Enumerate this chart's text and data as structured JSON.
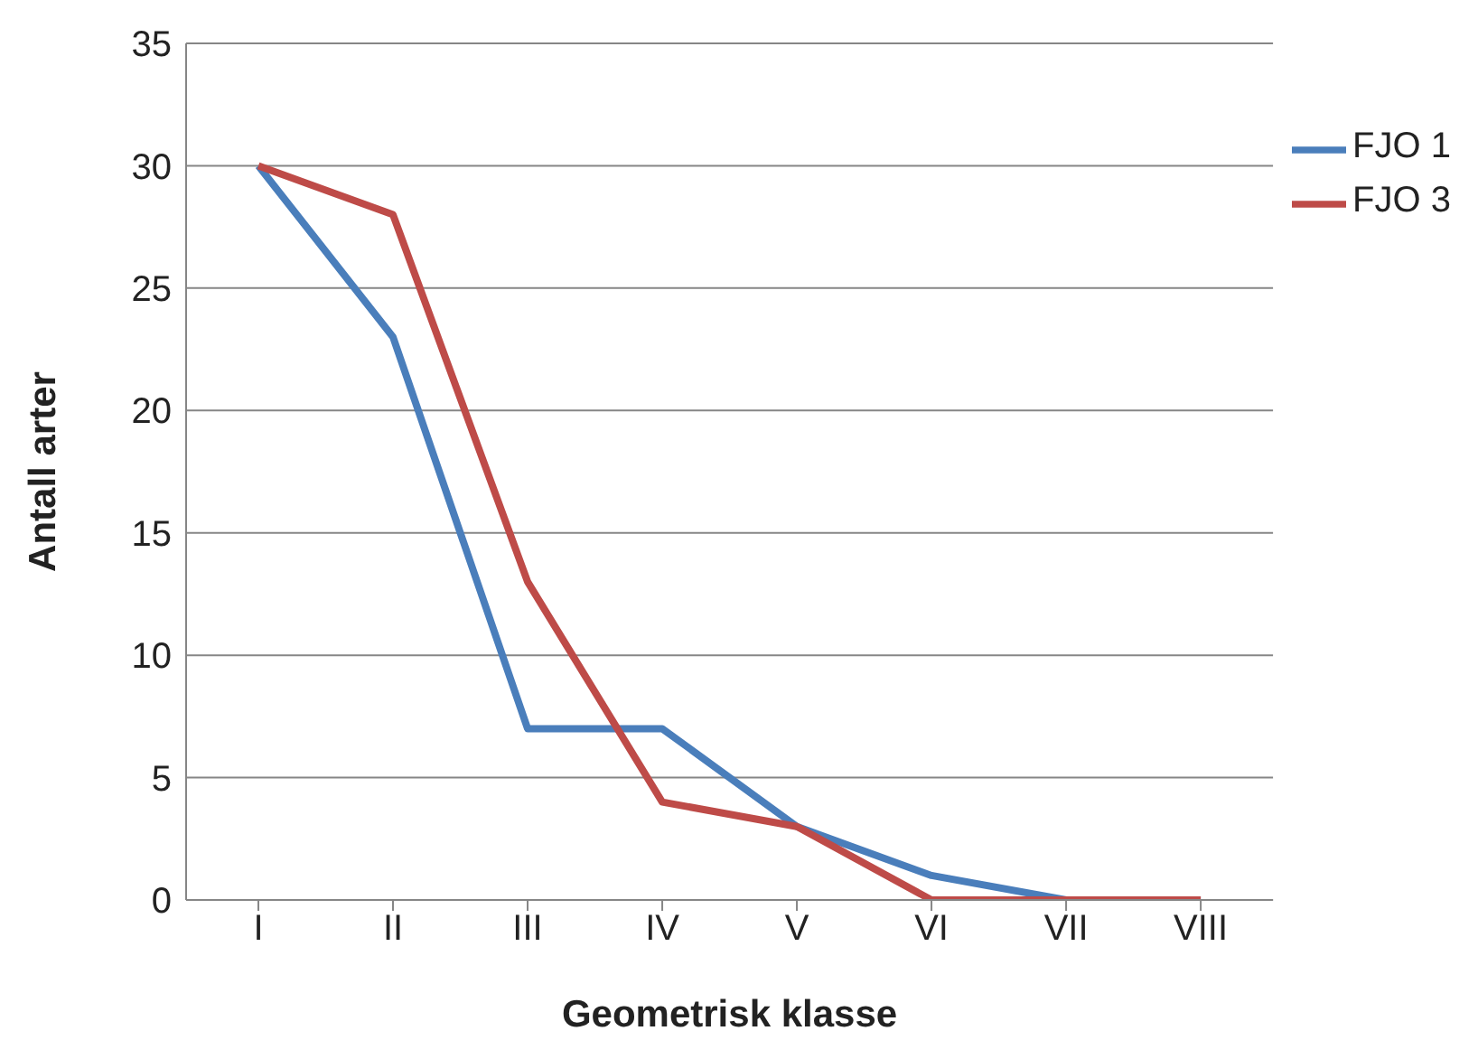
{
  "chart_data": {
    "type": "line",
    "xlabel": "Geometrisk klasse",
    "ylabel": "Antall arter",
    "categories": [
      "I",
      "II",
      "III",
      "IV",
      "V",
      "VI",
      "VII",
      "VIII"
    ],
    "series": [
      {
        "name": "FJO 1",
        "color": "#4a7ebb",
        "values": [
          30,
          23,
          7,
          7,
          3,
          1,
          0,
          0
        ]
      },
      {
        "name": "FJO 3",
        "color": "#be4b48",
        "values": [
          30,
          28,
          13,
          4,
          3,
          0,
          0,
          0
        ]
      }
    ],
    "ylim": [
      0,
      35
    ],
    "yticks": [
      0,
      5,
      10,
      15,
      20,
      25,
      30,
      35
    ],
    "grid": "y",
    "legend": "right",
    "marker": "none",
    "line_style": "solid"
  }
}
